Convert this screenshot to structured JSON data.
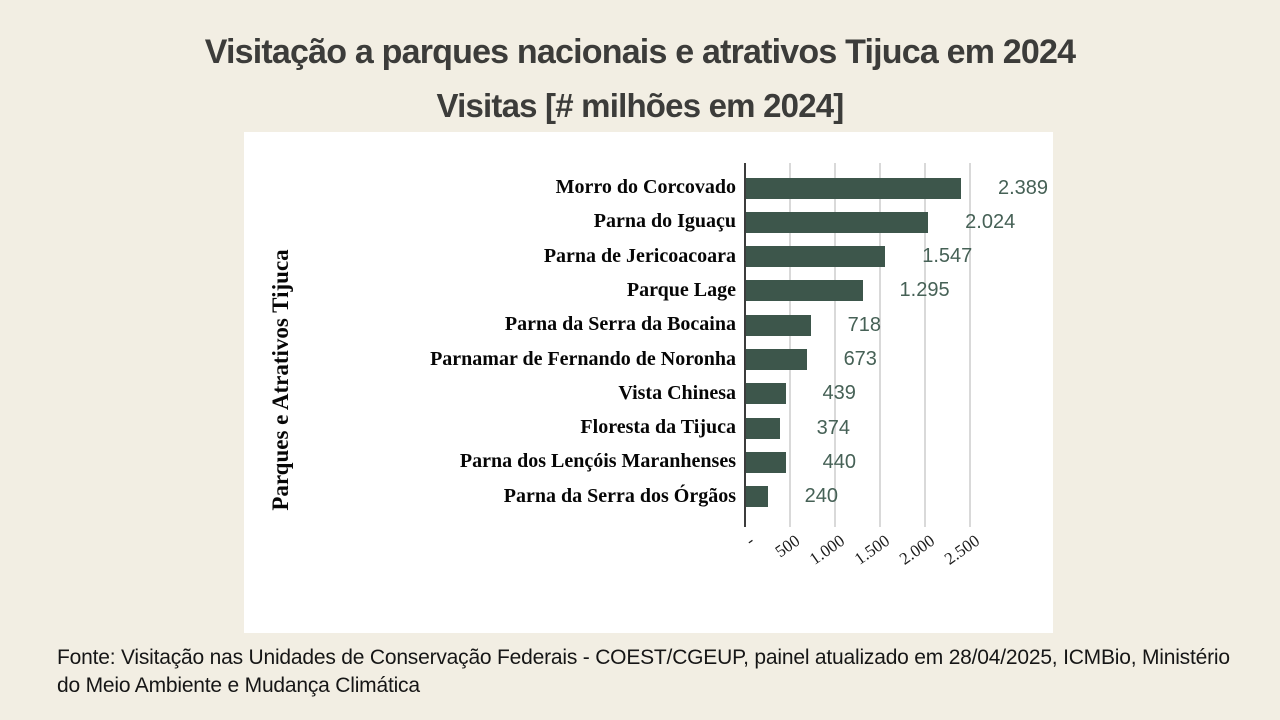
{
  "page": {
    "title": "Visitação a parques nacionais e atrativos Tijuca em 2024",
    "subtitle": "Visitas [# milhões em 2024]",
    "source": "Fonte: Visitação nas Unidades de Conservação Federais - COEST/CGEUP, painel atualizado em 28/04/2025, ICMBio, Ministério do Meio Ambiente e Mudança Climática"
  },
  "chart_data": {
    "type": "bar",
    "orientation": "horizontal",
    "title": "Visitação a parques nacionais e atrativos Tijuca em 2024",
    "subtitle": "Visitas [# milhões em 2024]",
    "ylabel": "Parques e Atrativos Tijuca",
    "xlabel": "",
    "categories": [
      "Morro do Corcovado",
      "Parna do Iguaçu",
      "Parna de Jericoacoara",
      "Parque Lage",
      "Parna da Serra da Bocaina",
      "Parnamar de Fernando de Noronha",
      "Vista Chinesa",
      "Floresta da Tijuca",
      "Parna dos Lençóis Maranhenses",
      "Parna da Serra dos Órgãos"
    ],
    "values": [
      2389,
      2024,
      1547,
      1295,
      718,
      673,
      439,
      374,
      440,
      240
    ],
    "value_labels": [
      "2.389",
      "2.024",
      "1.547",
      "1.295",
      "718",
      "673",
      "439",
      "374",
      "440",
      "240"
    ],
    "x_ticks": [
      {
        "label": "-",
        "value": 0
      },
      {
        "label": "500",
        "value": 500
      },
      {
        "label": "1.000",
        "value": 1000
      },
      {
        "label": "1.500",
        "value": 1500
      },
      {
        "label": "2.000",
        "value": 2000
      },
      {
        "label": "2.500",
        "value": 2500
      }
    ],
    "xlim": [
      0,
      2500
    ],
    "grid": true,
    "legend": "none"
  },
  "colors": {
    "page_background": "#f2eee3",
    "panel_background": "#ffffff",
    "bar": "#3d564b",
    "value_label": "#466156",
    "title_text": "#3c3c3a",
    "category_label": "#060606",
    "tick_label": "#1a1a1a",
    "gridline": "#d9d9d9",
    "axis_line": "#3c3c3c",
    "footer_text": "#161616"
  }
}
